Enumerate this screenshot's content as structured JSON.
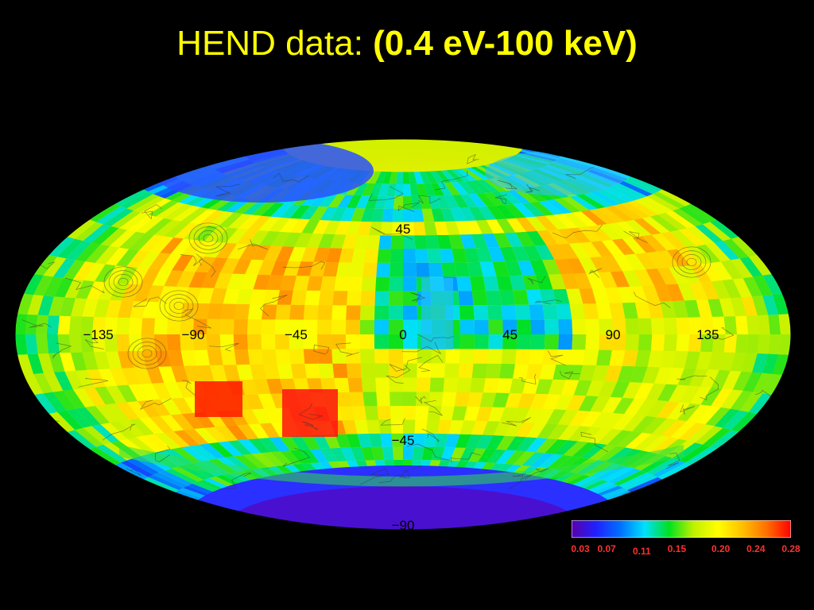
{
  "title": {
    "prefix": "HEND data: ",
    "bold": "(0.4 eV-100 keV)"
  },
  "map": {
    "projection": "Hammer-Aitoff",
    "longitude_labels": [
      "−135",
      "−90",
      "−45",
      "0",
      "45",
      "90",
      "135"
    ],
    "longitude_values": [
      -135,
      -90,
      -45,
      0,
      45,
      90,
      135
    ],
    "latitude_labels": [
      "45",
      "−45",
      "−90"
    ],
    "latitude_values": [
      45,
      -45,
      -90
    ],
    "label_color": "#000000"
  },
  "colorbar": {
    "tick_labels": [
      "0.03",
      "0.07",
      "0.11",
      "0.15",
      "0.20",
      "0.24",
      "0.28"
    ],
    "tick_values": [
      0.03,
      0.07,
      0.11,
      0.15,
      0.2,
      0.24,
      0.28
    ],
    "colors": [
      "#5a00a8",
      "#2020ff",
      "#0070ff",
      "#00e0ff",
      "#00e020",
      "#c0f000",
      "#ffff00",
      "#ffc000",
      "#ff7000",
      "#ff0000"
    ],
    "label_color": "#ff3030"
  },
  "colors": {
    "background": "#000000",
    "title": "#ffff00"
  }
}
